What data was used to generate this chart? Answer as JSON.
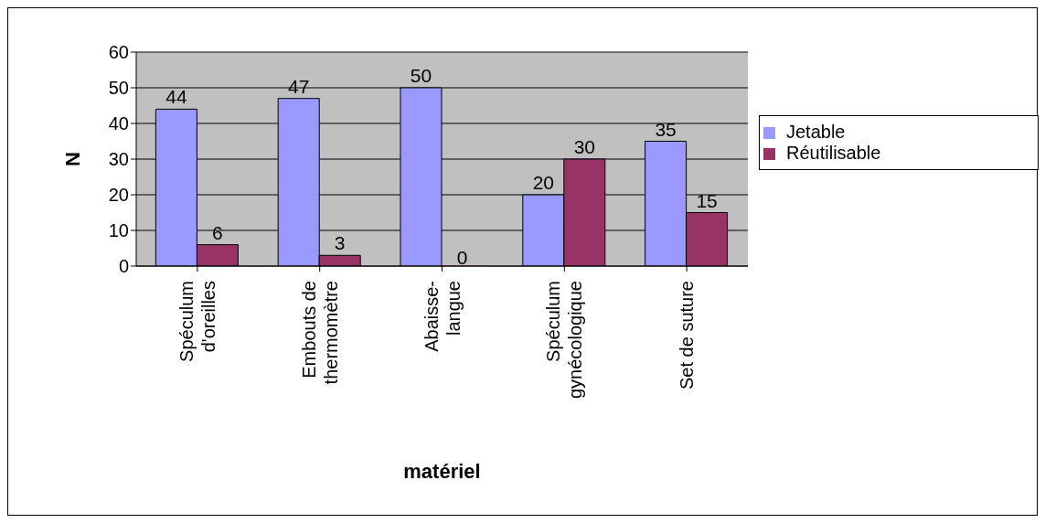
{
  "chart_data": {
    "type": "bar",
    "xlabel": "matériel",
    "ylabel": "N",
    "categories": [
      "Spéculum\nd'oreilles",
      "Embouts de\nthermomètre",
      "Abaisse-\nlangue",
      "Spéculum\ngynécologique",
      "Set de suture"
    ],
    "series": [
      {
        "name": "Jetable",
        "color": "#9999ff",
        "values": [
          44,
          47,
          50,
          20,
          35
        ]
      },
      {
        "name": "Réutilisable",
        "color": "#993366",
        "values": [
          6,
          3,
          0,
          30,
          15
        ]
      }
    ],
    "ylim": [
      0,
      60
    ],
    "yticks": [
      0,
      10,
      20,
      30,
      40,
      50,
      60
    ],
    "grid": "y",
    "legend": "right",
    "data_labels": true
  }
}
